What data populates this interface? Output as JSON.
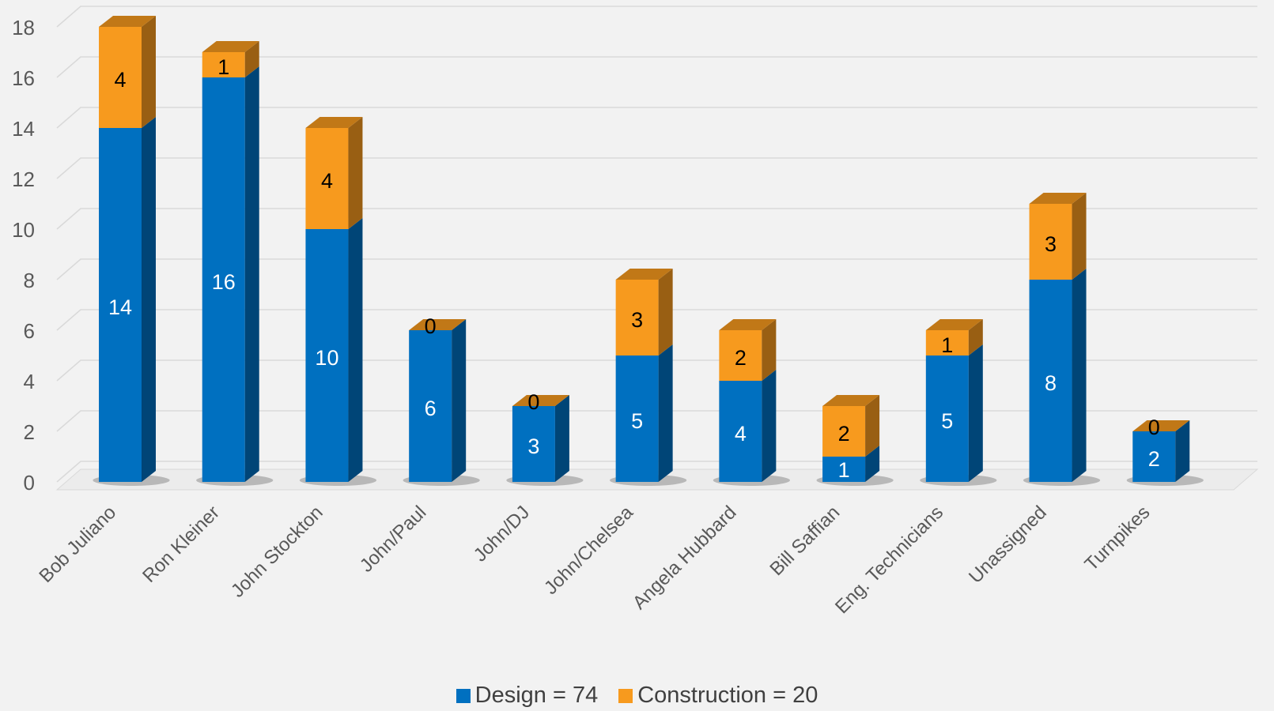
{
  "chart_data": {
    "type": "bar",
    "stacked": true,
    "style": "3d-column",
    "categories": [
      "Bob Juliano",
      "Ron Kleiner",
      "John Stockton",
      "John/Paul",
      "John/DJ",
      "John/Chelsea",
      "Angela Hubbard",
      "Bill Saffian",
      "Eng. Technicians",
      "Unassigned",
      "Turnpikes"
    ],
    "series": [
      {
        "name": "Design = 74",
        "values": [
          14,
          16,
          10,
          6,
          3,
          5,
          4,
          1,
          5,
          8,
          2
        ],
        "color": "#0070c0",
        "label_color": "#ffffff"
      },
      {
        "name": "Construction = 20",
        "values": [
          4,
          1,
          4,
          0,
          0,
          3,
          2,
          2,
          1,
          3,
          0
        ],
        "color": "#f79a1e",
        "label_color": "#000000"
      }
    ],
    "y_ticks": [
      0,
      2,
      4,
      6,
      8,
      10,
      12,
      14,
      16,
      18
    ],
    "ylim": [
      0,
      18
    ],
    "grid": true,
    "legend_position": "bottom",
    "title": "",
    "xlabel": "",
    "ylabel": ""
  }
}
